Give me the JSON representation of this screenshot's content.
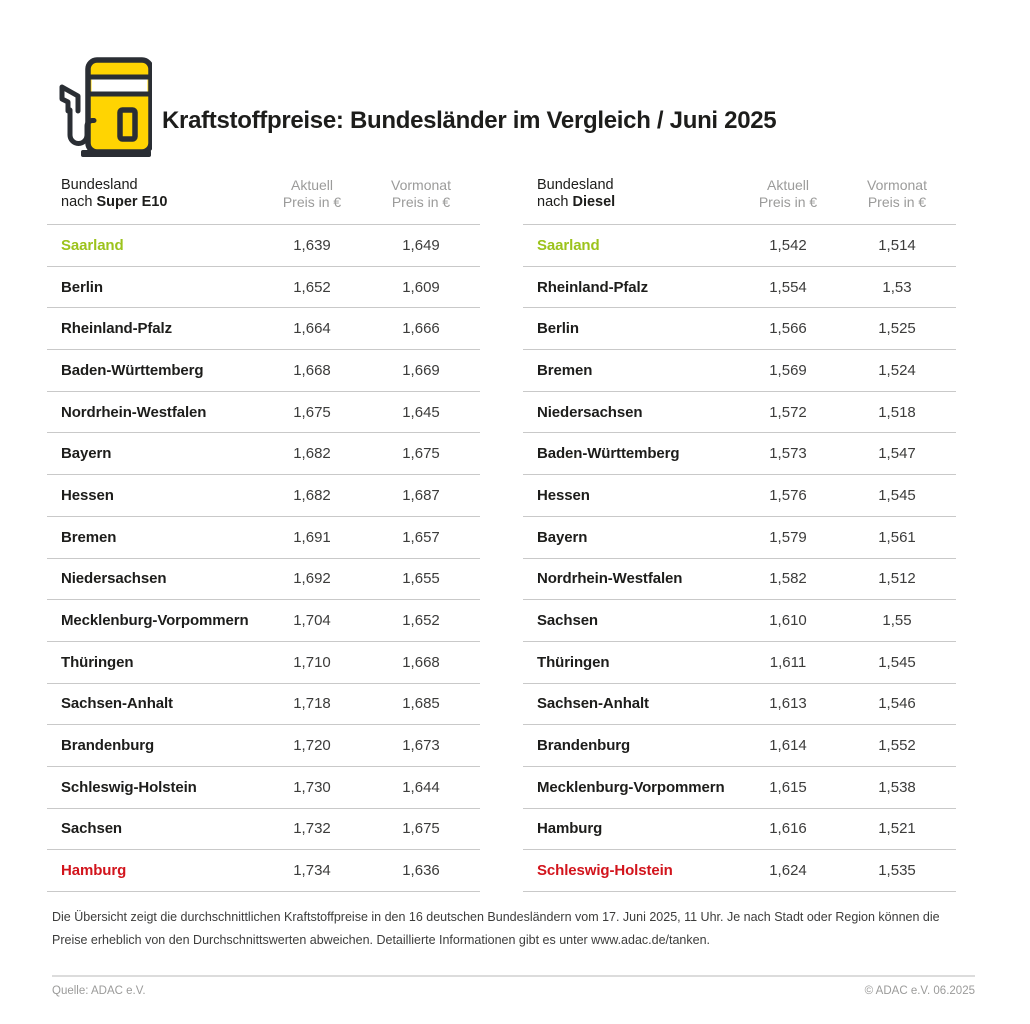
{
  "header": {
    "title": "Kraftstoffpreise: Bundesländer im Vergleich / Juni 2025",
    "icon": "fuel-pump-icon"
  },
  "columns": {
    "region_line1": "Bundesland",
    "region_prefix": "nach ",
    "aktuell_line1": "Aktuell",
    "aktuell_line2": "Preis in €",
    "vormonat_line1": "Vormonat",
    "vormonat_line2": "Preis in €"
  },
  "chart_data": [
    {
      "type": "table",
      "title": "Bundesland nach Super E10",
      "fuel": "Super E10",
      "columns": [
        "Bundesland",
        "Aktuell Preis in €",
        "Vormonat Preis in €"
      ],
      "rows": [
        {
          "name": "Saarland",
          "aktuell": "1,639",
          "vormonat": "1,649",
          "color": "green"
        },
        {
          "name": "Berlin",
          "aktuell": "1,652",
          "vormonat": "1,609"
        },
        {
          "name": "Rheinland-Pfalz",
          "aktuell": "1,664",
          "vormonat": "1,666"
        },
        {
          "name": "Baden-Württemberg",
          "aktuell": "1,668",
          "vormonat": "1,669"
        },
        {
          "name": "Nordrhein-Westfalen",
          "aktuell": "1,675",
          "vormonat": "1,645"
        },
        {
          "name": "Bayern",
          "aktuell": "1,682",
          "vormonat": "1,675"
        },
        {
          "name": "Hessen",
          "aktuell": "1,682",
          "vormonat": "1,687"
        },
        {
          "name": "Bremen",
          "aktuell": "1,691",
          "vormonat": "1,657"
        },
        {
          "name": "Niedersachsen",
          "aktuell": "1,692",
          "vormonat": "1,655"
        },
        {
          "name": "Mecklenburg-Vorpommern",
          "aktuell": "1,704",
          "vormonat": "1,652"
        },
        {
          "name": "Thüringen",
          "aktuell": "1,710",
          "vormonat": "1,668"
        },
        {
          "name": "Sachsen-Anhalt",
          "aktuell": "1,718",
          "vormonat": "1,685"
        },
        {
          "name": "Brandenburg",
          "aktuell": "1,720",
          "vormonat": "1,673"
        },
        {
          "name": "Schleswig-Holstein",
          "aktuell": "1,730",
          "vormonat": "1,644"
        },
        {
          "name": "Sachsen",
          "aktuell": "1,732",
          "vormonat": "1,675"
        },
        {
          "name": "Hamburg",
          "aktuell": "1,734",
          "vormonat": "1,636",
          "color": "red"
        }
      ]
    },
    {
      "type": "table",
      "title": "Bundesland nach Diesel",
      "fuel": "Diesel",
      "columns": [
        "Bundesland",
        "Aktuell Preis in €",
        "Vormonat Preis in €"
      ],
      "rows": [
        {
          "name": "Saarland",
          "aktuell": "1,542",
          "vormonat": "1,514",
          "color": "green"
        },
        {
          "name": "Rheinland-Pfalz",
          "aktuell": "1,554",
          "vormonat": "1,53"
        },
        {
          "name": "Berlin",
          "aktuell": "1,566",
          "vormonat": "1,525"
        },
        {
          "name": "Bremen",
          "aktuell": "1,569",
          "vormonat": "1,524"
        },
        {
          "name": "Niedersachsen",
          "aktuell": "1,572",
          "vormonat": "1,518"
        },
        {
          "name": "Baden-Württemberg",
          "aktuell": "1,573",
          "vormonat": "1,547"
        },
        {
          "name": "Hessen",
          "aktuell": "1,576",
          "vormonat": "1,545"
        },
        {
          "name": "Bayern",
          "aktuell": "1,579",
          "vormonat": "1,561"
        },
        {
          "name": "Nordrhein-Westfalen",
          "aktuell": "1,582",
          "vormonat": "1,512"
        },
        {
          "name": "Sachsen",
          "aktuell": "1,610",
          "vormonat": "1,55"
        },
        {
          "name": "Thüringen",
          "aktuell": "1,611",
          "vormonat": "1,545"
        },
        {
          "name": "Sachsen-Anhalt",
          "aktuell": "1,613",
          "vormonat": "1,546"
        },
        {
          "name": "Brandenburg",
          "aktuell": "1,614",
          "vormonat": "1,552"
        },
        {
          "name": "Mecklenburg-Vorpommern",
          "aktuell": "1,615",
          "vormonat": "1,538"
        },
        {
          "name": "Hamburg",
          "aktuell": "1,616",
          "vormonat": "1,521"
        },
        {
          "name": "Schleswig-Holstein",
          "aktuell": "1,624",
          "vormonat": "1,535",
          "color": "red"
        }
      ]
    }
  ],
  "footnote": {
    "line1": "Die Übersicht zeigt die durchschnittlichen Kraftstoffpreise in den 16 deutschen Bundesländern vom 17. Juni 2025, 11 Uhr. Je nach Stadt oder Region können die",
    "line2": "Preise erheblich von den Durchschnittswerten abweichen. Detaillierte Informationen gibt es unter www.adac.de/tanken."
  },
  "footer": {
    "source": "Quelle: ADAC e.V.",
    "copyright": "© ADAC e.V. 06.2025"
  },
  "colors": {
    "brand_yellow": "#FFD402",
    "outline_dark": "#2A2E34",
    "cheapest_green": "#9cc31c",
    "most_expensive_red": "#d2141c",
    "text_dark": "#1d1d1b",
    "number_gray": "#3c3c3b",
    "header_gray": "#9b9b9a",
    "divider_gray": "#c9c9c9"
  }
}
